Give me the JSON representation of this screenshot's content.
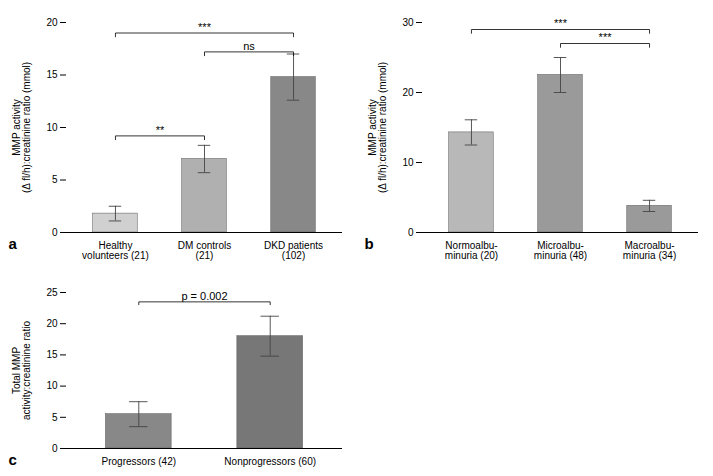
{
  "chart_data": [
    {
      "type": "bar",
      "panel_label": "a",
      "categories": [
        "Healthy\nvolunteers (21)",
        "DM controls\n(21)",
        "DKD patients\n(102)"
      ],
      "values": [
        1.8,
        7.0,
        14.8
      ],
      "errors": [
        0.7,
        1.3,
        2.2
      ],
      "ylabel": "MMP activity\n(Δ fl/h):creatinine ratio (mmol)",
      "ylim": [
        0,
        20
      ],
      "yticks": [
        0,
        5,
        10,
        15,
        20
      ],
      "colors": [
        "#d0d0d0",
        "#b0b0b0",
        "#888888"
      ],
      "sig_brackets": [
        {
          "x1": 0,
          "x2": 1,
          "y": 9.2,
          "label": "**"
        },
        {
          "x1": 0,
          "x2": 2,
          "y": 19.0,
          "label": "***"
        },
        {
          "x1": 1,
          "x2": 2,
          "y": 17.2,
          "label": "ns"
        }
      ]
    },
    {
      "type": "bar",
      "panel_label": "b",
      "categories": [
        "Normoalbu-\nminuria (20)",
        "Microalbu-\nminuria (48)",
        "Macroalbu-\nminuria (34)"
      ],
      "values": [
        14.3,
        22.5,
        3.8
      ],
      "errors": [
        1.8,
        2.5,
        0.8
      ],
      "ylabel": "MMP activity\n(Δ fl/h):creatinine ratio (mmol)",
      "ylim": [
        0,
        30
      ],
      "yticks": [
        0,
        10,
        20,
        30
      ],
      "colors": [
        "#b8b8b8",
        "#9a9a9a",
        "#9a9a9a"
      ],
      "sig_brackets": [
        {
          "x1": 0,
          "x2": 2,
          "y": 29.0,
          "label": "***"
        },
        {
          "x1": 1,
          "x2": 2,
          "y": 27.0,
          "label": "***"
        }
      ]
    },
    {
      "type": "bar",
      "panel_label": "c",
      "categories": [
        "Progressors (42)",
        "Nonprogressors (60)"
      ],
      "values": [
        5.5,
        18.0
      ],
      "errors": [
        2.0,
        3.2
      ],
      "ylabel": "Total MMP\nactivity:creatinine ratio",
      "ylim": [
        0,
        25
      ],
      "yticks": [
        0,
        5,
        10,
        15,
        20,
        25
      ],
      "colors": [
        "#888888",
        "#777777"
      ],
      "sig_brackets": [
        {
          "x1": 0,
          "x2": 1,
          "y": 23.5,
          "label": "p = 0.002"
        }
      ]
    }
  ]
}
